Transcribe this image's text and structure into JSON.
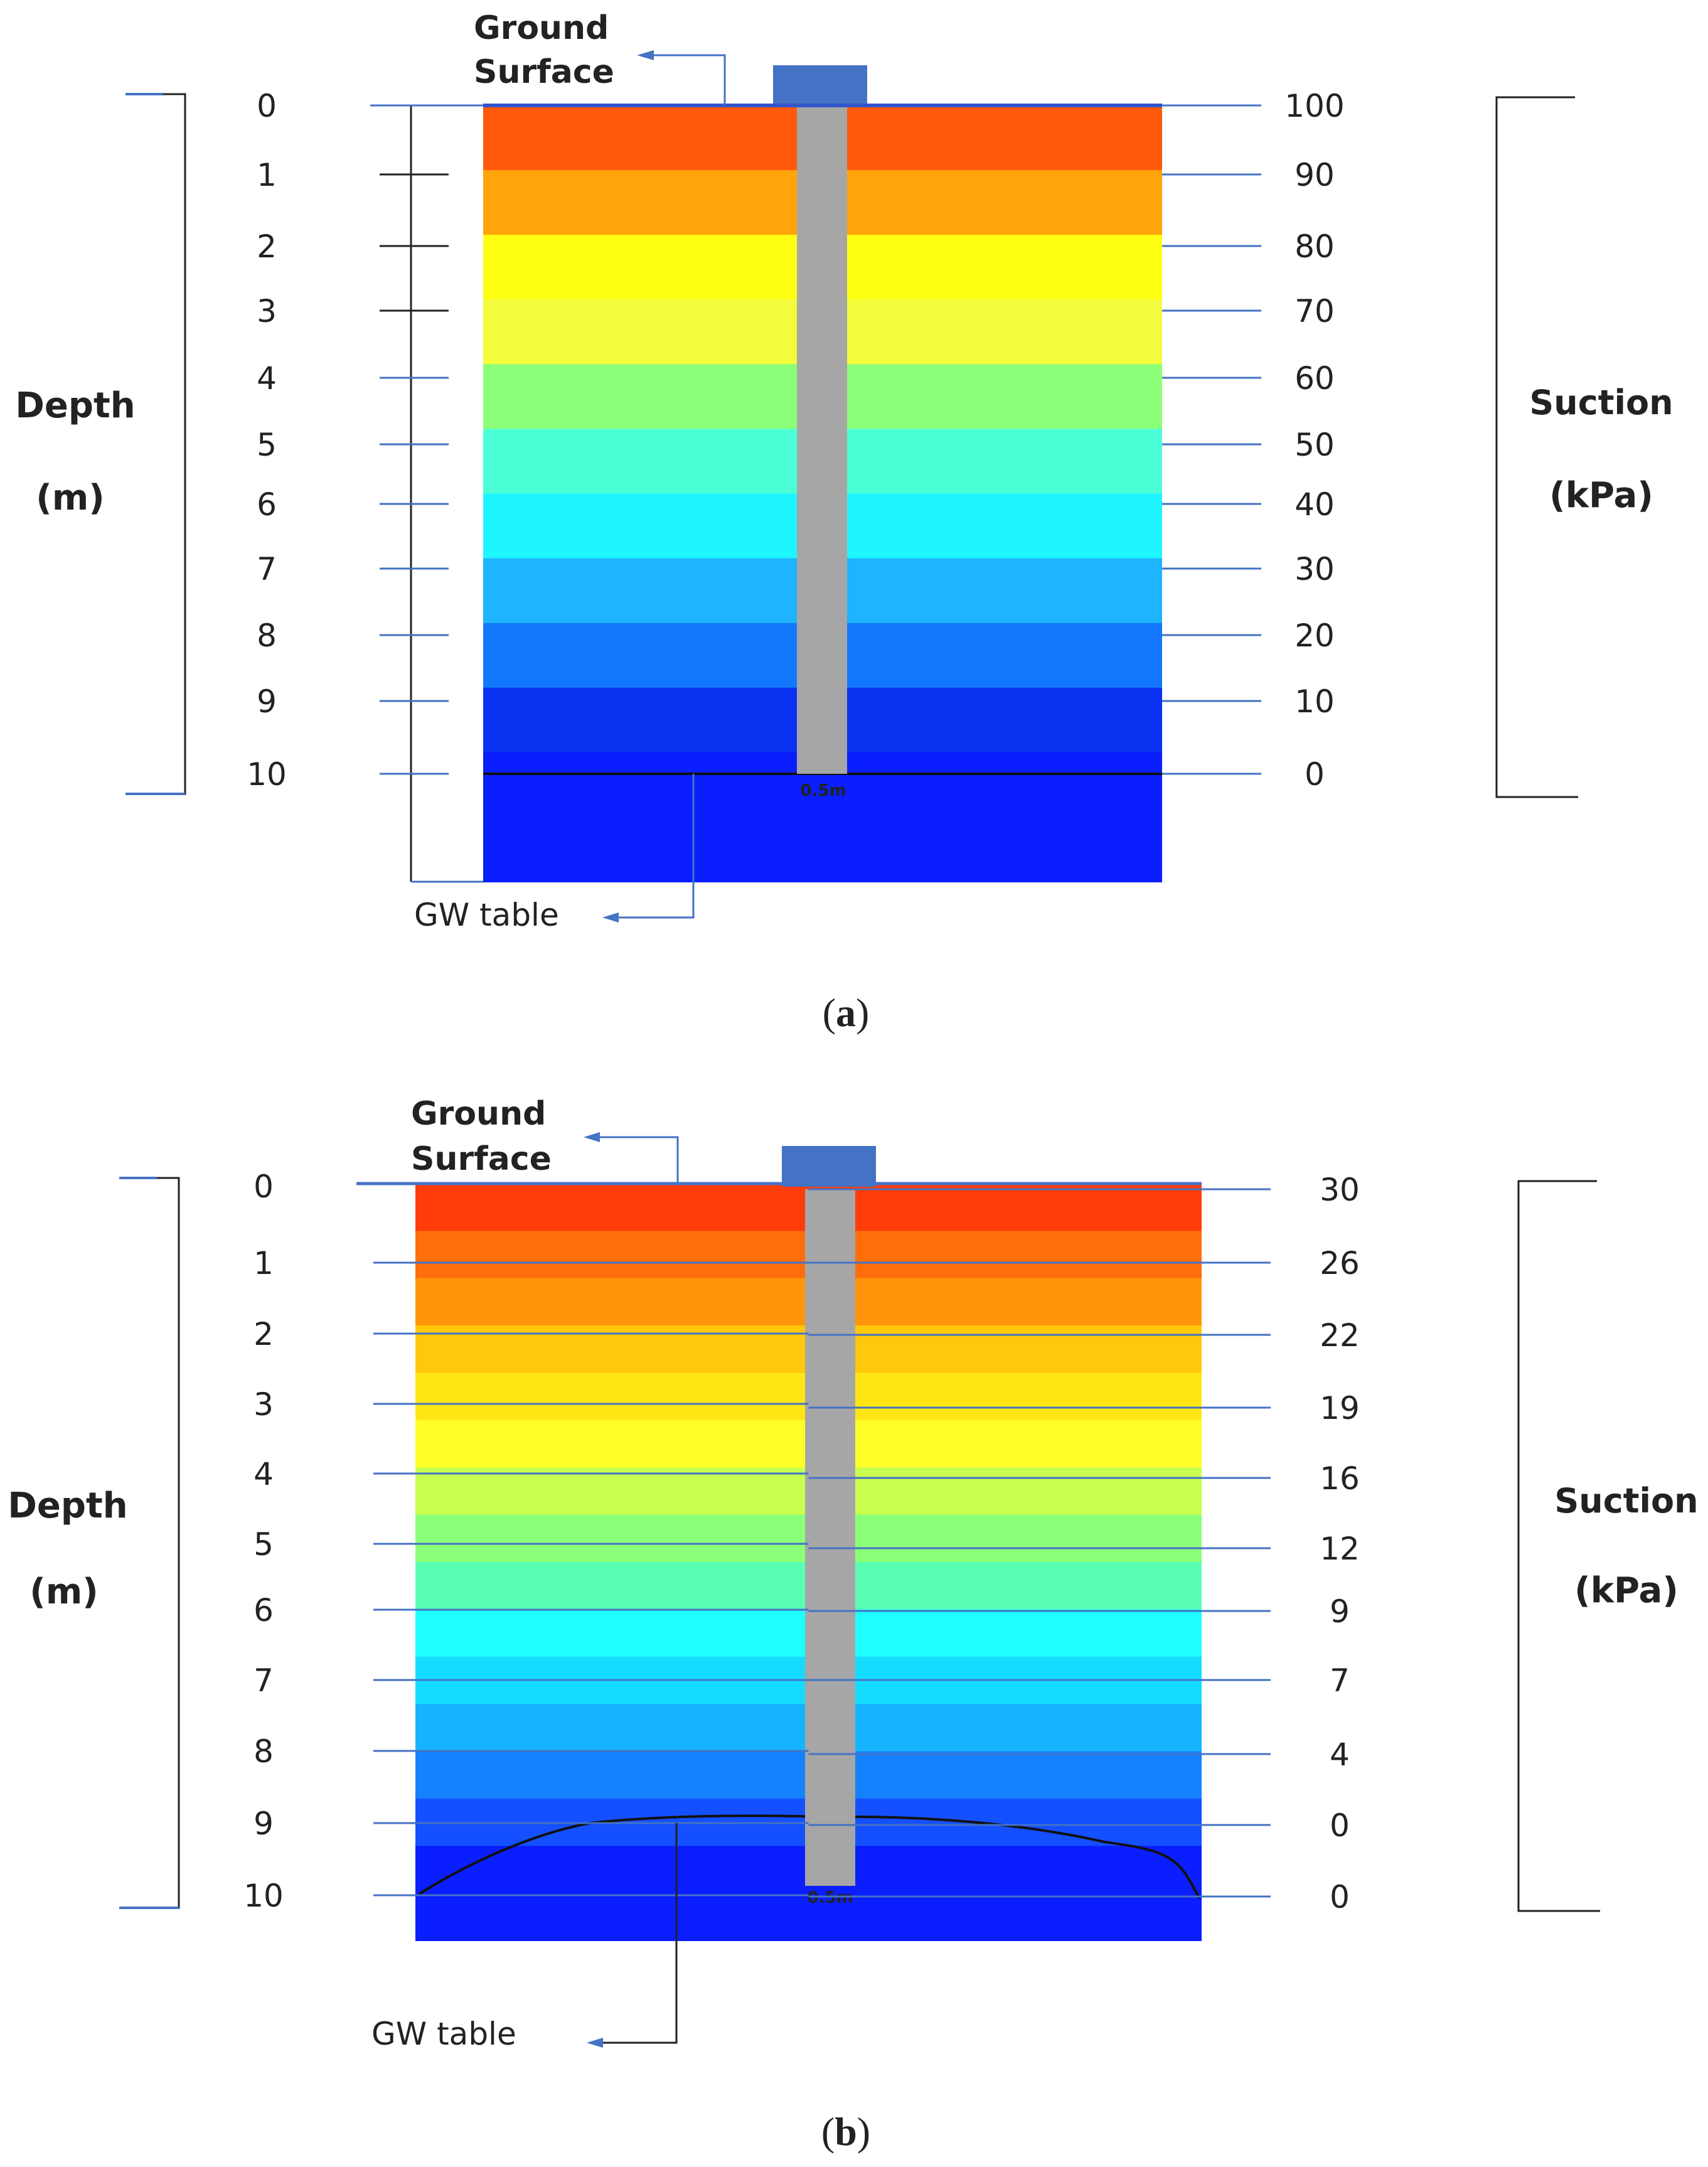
{
  "panels": [
    {
      "id": "a",
      "caption_letter": "a",
      "ground_surface_line1": "Ground",
      "ground_surface_line2": "Surface",
      "gw_table_label": "GW table",
      "pile_label": "0.5m",
      "depth_label_line1": "Depth",
      "depth_label_line2": "(m)",
      "suction_label_line1": "Suction",
      "suction_label_line2": "(kPa)",
      "depth_ticks": [
        "0",
        "1",
        "2",
        "3",
        "4",
        "5",
        "6",
        "7",
        "8",
        "9",
        "10"
      ],
      "suction_ticks": [
        "100",
        "90",
        "80",
        "70",
        "60",
        "50",
        "40",
        "30",
        "20",
        "10",
        "0"
      ],
      "band_colors": [
        "#ff5a0a",
        "#ffa50a",
        "#ffff14",
        "#f2fb3c",
        "#8cff78",
        "#4bffd7",
        "#1ef5ff",
        "#1eb4ff",
        "#1478ff",
        "#0a32f0",
        "#0a1eff",
        "#0a1eff"
      ]
    },
    {
      "id": "b",
      "caption_letter": "b",
      "ground_surface_line1": "Ground",
      "ground_surface_line2": "Surface",
      "gw_table_label": "GW table",
      "pile_label": "0.5m",
      "depth_label_line1": "Depth",
      "depth_label_line2": "(m)",
      "suction_label_line1": "Suction",
      "suction_label_line2": "(kPa)",
      "depth_ticks": [
        "0",
        "1",
        "2",
        "3",
        "4",
        "5",
        "6",
        "7",
        "8",
        "9",
        "10"
      ],
      "suction_ticks": [
        "30",
        "26",
        "22",
        "19",
        "16",
        "12",
        "9",
        "7",
        "4",
        "0",
        "0"
      ],
      "band_colors": [
        "#ff3c0a",
        "#ff6e0a",
        "#ff960a",
        "#ffc80a",
        "#ffe614",
        "#ffff28",
        "#c8ff50",
        "#8cff78",
        "#5affb4",
        "#1effff",
        "#14dcff",
        "#14b4ff",
        "#1482ff",
        "#1450ff",
        "#0a1eff",
        "#0a1eff"
      ]
    }
  ],
  "colors": {
    "pile": "#a6a6a6",
    "cap": "#4472c4",
    "leader": "#4472c4",
    "tick": "#4472c4",
    "bracket": "#3f6fb6"
  }
}
